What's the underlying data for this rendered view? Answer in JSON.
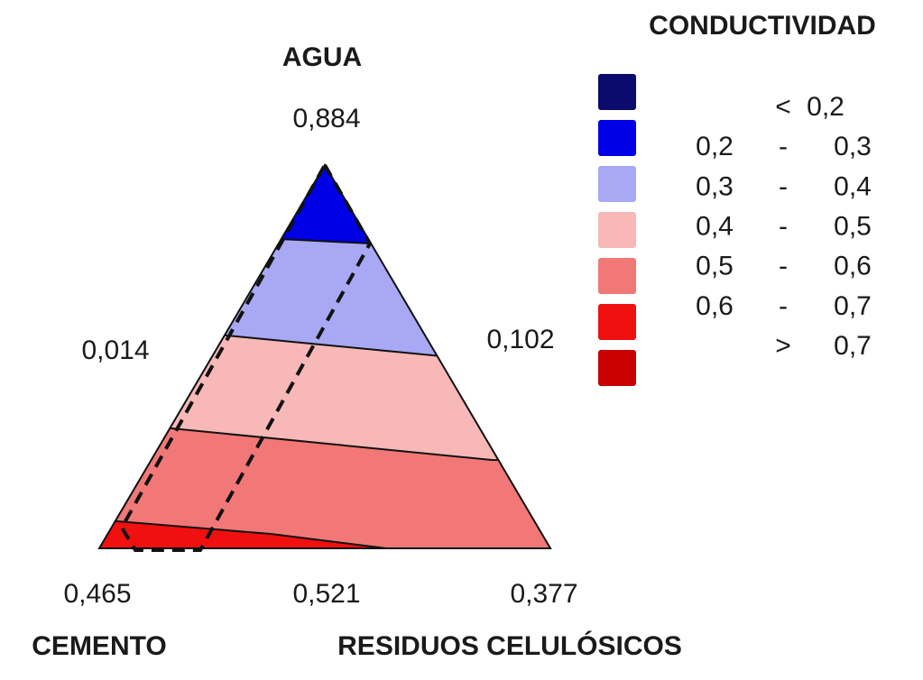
{
  "vertices": {
    "top": {
      "name": "AGUA",
      "value": "0,884"
    },
    "left": {
      "name": "CEMENTO",
      "value": "0,465"
    },
    "right": {
      "name": "RESIDUOS CELULÓSICOS",
      "value": "0,377"
    }
  },
  "edge_labels": {
    "left": "0,014",
    "right": "0,102",
    "bottom": "0,521"
  },
  "legend": {
    "title": "CONDUCTIVIDAD",
    "items": [
      {
        "color": "#0b0b6e",
        "sep": "<",
        "to": "0,2"
      },
      {
        "color": "#0000e6",
        "from": "0,2",
        "sep": "-",
        "to": "0,3"
      },
      {
        "color": "#a8a8f4",
        "from": "0,3",
        "sep": "-",
        "to": "0,4"
      },
      {
        "color": "#f8b8b8",
        "from": "0,4",
        "sep": "-",
        "to": "0,5"
      },
      {
        "color": "#f27878",
        "from": "0,5",
        "sep": "-",
        "to": "0,6"
      },
      {
        "color": "#f01010",
        "from": "0,6",
        "sep": "-",
        "to": "0,7"
      },
      {
        "color": "#c80000",
        "sep": ">",
        "to": "0,7"
      }
    ]
  }
}
